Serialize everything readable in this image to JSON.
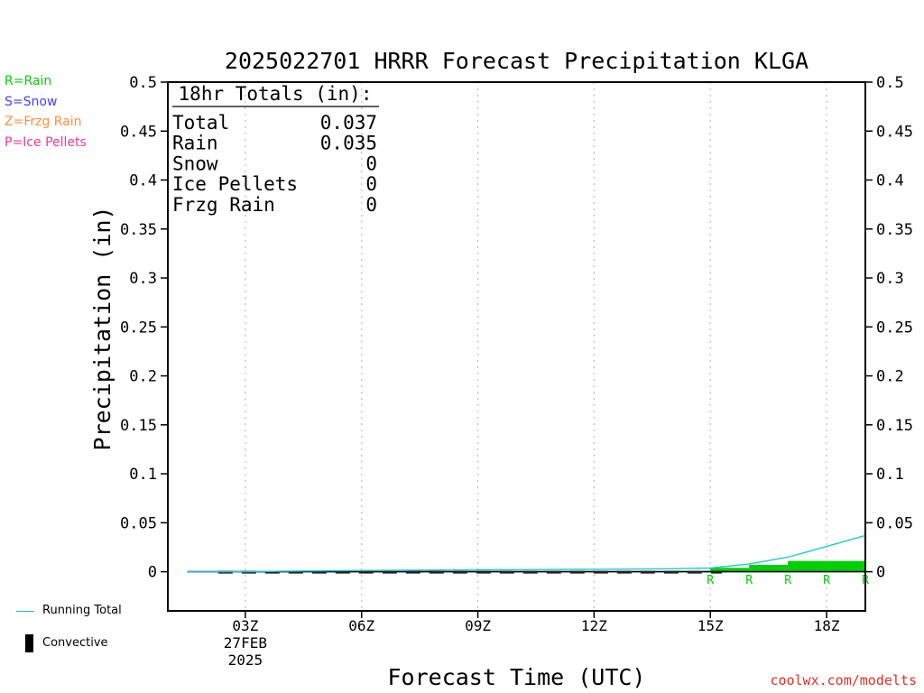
{
  "colors": {
    "rain": "#00d000",
    "snow": "#4040ff",
    "frzg_rain": "#ff8c40",
    "ice_pellets": "#ff3399",
    "running_total": "#20c8d0",
    "credit": "#e03020"
  },
  "type_legend": [
    {
      "label": "R=Rain",
      "color": "#00d000"
    },
    {
      "label": "S=Snow",
      "color": "#4040ff"
    },
    {
      "label": "Z=Frzg Rain",
      "color": "#ff8c40"
    },
    {
      "label": "P=Ice Pellets",
      "color": "#ff3399"
    }
  ],
  "bottom_legend": {
    "running_total": "Running Total",
    "convective": "Convective"
  },
  "credit": "coolwx.com/modelts",
  "chart_data": {
    "type": "bar",
    "title": "2025022701 HRRR Forecast Precipitation KLGA",
    "xlabel": "Forecast Time (UTC)",
    "ylabel": "Precipitation (in)",
    "ylim": [
      -0.04,
      0.5
    ],
    "yticks": [
      0,
      0.05,
      0.1,
      0.15,
      0.2,
      0.25,
      0.3,
      0.35,
      0.4,
      0.45,
      0.5
    ],
    "ytick_labels": [
      "0",
      "0.05",
      "0.1",
      "0.15",
      "0.2",
      "0.25",
      "0.3",
      "0.35",
      "0.4",
      "0.45",
      "0.5"
    ],
    "xlim": [
      1,
      19
    ],
    "xticks": [
      {
        "hour": 3,
        "label": "03Z",
        "date": "27FEB",
        "year": "2025"
      },
      {
        "hour": 6,
        "label": "06Z"
      },
      {
        "hour": 9,
        "label": "09Z"
      },
      {
        "hour": 12,
        "label": "12Z"
      },
      {
        "hour": 15,
        "label": "15Z"
      },
      {
        "hour": 18,
        "label": "18Z"
      }
    ],
    "grid": "vertical dotted at ticks",
    "totals_box": {
      "header": "18hr Totals (in):",
      "rows": [
        {
          "label": "Total",
          "value": "0.037"
        },
        {
          "label": "Rain",
          "value": "0.035"
        },
        {
          "label": "Snow",
          "value": "0"
        },
        {
          "label": "Ice Pellets",
          "value": "0"
        },
        {
          "label": "Frzg Rain",
          "value": "0"
        }
      ]
    },
    "hourly_precip": {
      "hours": [
        2,
        3,
        4,
        5,
        6,
        7,
        8,
        9,
        10,
        11,
        12,
        13,
        14,
        15,
        16,
        17,
        18,
        19
      ],
      "values": [
        0,
        0,
        0.0003,
        0.0005,
        0.0003,
        0.0002,
        0.0002,
        0.0002,
        0.0002,
        0.0002,
        0.0002,
        0.0002,
        0.0003,
        0.0008,
        0.004,
        0.007,
        0.011,
        0.011
      ]
    },
    "running_total": {
      "hours": [
        1.5,
        2,
        3,
        4,
        5,
        6,
        7,
        8,
        9,
        10,
        11,
        12,
        13,
        14,
        15,
        16,
        17,
        18,
        19
      ],
      "values": [
        0,
        0,
        0,
        0.0005,
        0.001,
        0.0013,
        0.0015,
        0.0017,
        0.0019,
        0.0021,
        0.0023,
        0.0025,
        0.0027,
        0.003,
        0.0038,
        0.0078,
        0.0148,
        0.0258,
        0.037
      ]
    },
    "type_markers": [
      {
        "hour": 15,
        "label": "R"
      },
      {
        "hour": 16,
        "label": "R"
      },
      {
        "hour": 17,
        "label": "R"
      },
      {
        "hour": 18,
        "label": "R"
      },
      {
        "hour": 19,
        "label": "R"
      }
    ]
  }
}
